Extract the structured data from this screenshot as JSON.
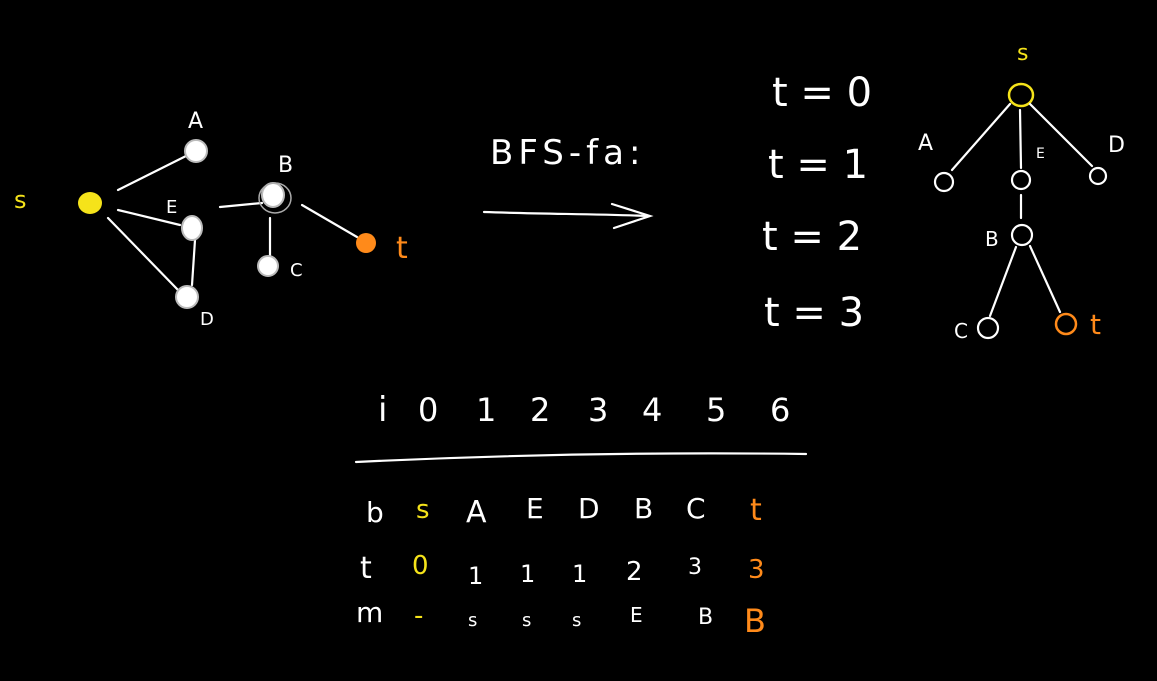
{
  "graph": {
    "source_label": "s",
    "nodes": {
      "A": "A",
      "E": "E",
      "D": "D",
      "B": "B",
      "C": "C",
      "t": "t"
    }
  },
  "bfs": {
    "caption": "BFS-fa:"
  },
  "levels": [
    "t = 0",
    "t = 1",
    "t = 2",
    "t = 3"
  ],
  "tree": {
    "root_label": "s",
    "labels": [
      "A",
      "E",
      "D",
      "B",
      "C",
      "t"
    ]
  },
  "table": {
    "header_label": "i",
    "indices": [
      "0",
      "1",
      "2",
      "3",
      "4",
      "5",
      "6"
    ],
    "rows": [
      {
        "label": "b",
        "values": [
          "s",
          "A",
          "E",
          "D",
          "B",
          "C",
          "t"
        ]
      },
      {
        "label": "t",
        "values": [
          "0",
          "1",
          "1",
          "1",
          "2",
          "3",
          "3"
        ]
      },
      {
        "label": "m",
        "values": [
          "-",
          "s",
          "s",
          "s",
          "E",
          "B",
          "B"
        ]
      }
    ]
  },
  "colors": {
    "background": "#000000",
    "ink": "#ffffff",
    "source": "#f5e31a",
    "target": "#ff8a1a"
  }
}
